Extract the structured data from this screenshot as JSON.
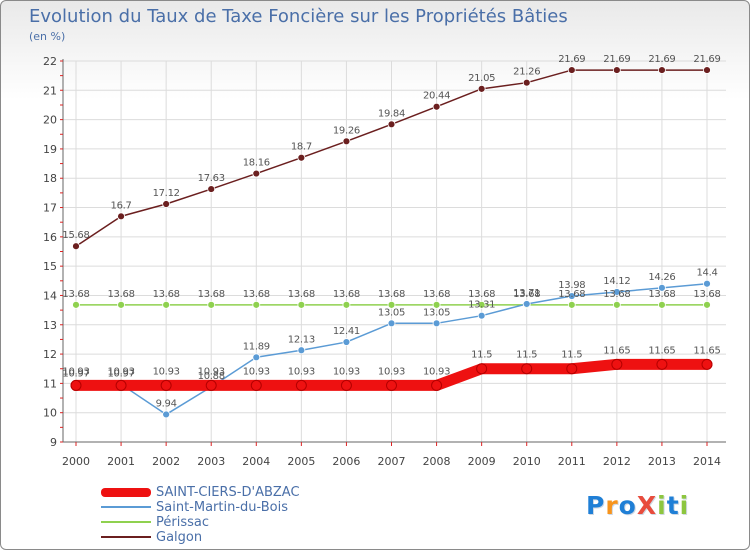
{
  "header": {
    "title": "Evolution du Taux de Taxe Foncière sur les Propriétés Bâties",
    "unit": "(en %)"
  },
  "chart_data": {
    "type": "line",
    "title": "Evolution du Taux de Taxe Foncière sur les Propriétés Bâties",
    "ylabel": "(en %)",
    "xlabel": "",
    "ylim": [
      9,
      22
    ],
    "yticks": [
      9,
      10,
      11,
      12,
      13,
      14,
      15,
      16,
      17,
      18,
      19,
      20,
      21,
      22
    ],
    "categories": [
      "2000",
      "2001",
      "2002",
      "2003",
      "2004",
      "2005",
      "2006",
      "2007",
      "2008",
      "2009",
      "2010",
      "2011",
      "2012",
      "2013",
      "2014"
    ],
    "grid": true,
    "legend_position": "bottom-left",
    "series": [
      {
        "name": "Galgon",
        "color": "#6b1f1f",
        "values": [
          15.68,
          16.7,
          17.12,
          17.63,
          18.16,
          18.7,
          19.26,
          19.84,
          20.44,
          21.05,
          21.26,
          21.69,
          21.69,
          21.69,
          21.69
        ],
        "labels": [
          "15.68",
          "16.7",
          "17.12",
          "17.63",
          "18.16",
          "18.7",
          "19.26",
          "19.84",
          "20.44",
          "21.05",
          "21.26",
          "21.69",
          "21.69",
          "21.69",
          "21.69"
        ]
      },
      {
        "name": "Périssac",
        "color": "#8fd14f",
        "values": [
          13.68,
          13.68,
          13.68,
          13.68,
          13.68,
          13.68,
          13.68,
          13.68,
          13.68,
          13.68,
          13.68,
          13.68,
          13.68,
          13.68,
          13.68
        ],
        "labels": [
          "13.68",
          "13.68",
          "13.68",
          "13.68",
          "13.68",
          "13.68",
          "13.68",
          "13.68",
          "13.68",
          "13.68",
          "13.68",
          "13.68",
          "13.68",
          "13.68",
          "13.68"
        ]
      },
      {
        "name": "Saint-Martin-du-Bois",
        "color": "#5b9bd5",
        "values": [
          10.97,
          10.97,
          9.94,
          10.88,
          11.89,
          12.13,
          12.41,
          13.05,
          13.05,
          13.31,
          13.71,
          13.98,
          14.12,
          14.26,
          14.4
        ],
        "labels": [
          "10.97",
          "10.97",
          "9.94",
          "10.88",
          "11.89",
          "12.13",
          "12.41",
          "13.05",
          "13.05",
          "13.31",
          "13.71",
          "13.98",
          "14.12",
          "14.26",
          "14.4"
        ]
      },
      {
        "name": "SAINT-CIERS-D'ABZAC",
        "color": "#ee1111",
        "values": [
          10.93,
          10.93,
          10.93,
          10.93,
          10.93,
          10.93,
          10.93,
          10.93,
          10.93,
          11.5,
          11.5,
          11.5,
          11.65,
          11.65,
          11.65
        ],
        "labels": [
          "10.93",
          "10.93",
          "10.93",
          "10.93",
          "10.93",
          "10.93",
          "10.93",
          "10.93",
          "10.93",
          "11.5",
          "11.5",
          "11.5",
          "11.65",
          "11.65",
          "11.65"
        ]
      }
    ]
  },
  "legend": {
    "items": [
      {
        "name": "SAINT-CIERS-D'ABZAC",
        "color": "#ee1111",
        "thick": true
      },
      {
        "name": "Saint-Martin-du-Bois",
        "color": "#5b9bd5",
        "thick": false
      },
      {
        "name": "Périssac",
        "color": "#8fd14f",
        "thick": false
      },
      {
        "name": "Galgon",
        "color": "#6b1f1f",
        "thick": false
      }
    ]
  },
  "logo": {
    "text": "ProXiti",
    "letter_colors": [
      "#1f7fd6",
      "#f7941d",
      "#1f7fd6",
      "#e84c3d",
      "#8dc63f",
      "#1f7fd6",
      "#8dc63f"
    ]
  }
}
